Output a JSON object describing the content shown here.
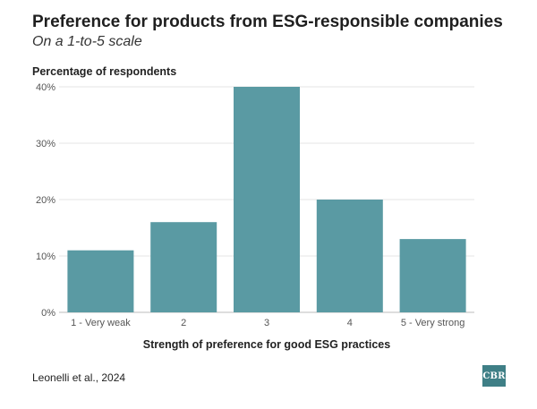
{
  "chart_data": {
    "type": "bar",
    "title": "Preference for products from ESG-responsible companies",
    "subtitle": "On a 1-to-5 scale",
    "ylabel": "Percentage of respondents",
    "xlabel": "Strength of preference for good ESG practices",
    "categories": [
      "1 - Very weak",
      "2",
      "3",
      "4",
      "5 - Very strong"
    ],
    "values": [
      11,
      16,
      40,
      20,
      13
    ],
    "ylim": [
      0,
      40
    ],
    "yticks": [
      "0%",
      "10%",
      "20%",
      "30%",
      "40%"
    ],
    "bar_color": "#5a9aa3",
    "grid": true
  },
  "source": "Leonelli et al., 2024",
  "logo": {
    "text": "CBR",
    "color": "#3f7f86"
  }
}
